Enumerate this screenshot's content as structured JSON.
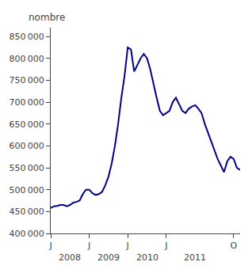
{
  "chart_data": {
    "type": "line",
    "ylabel": "nombre",
    "color": "#00008B",
    "grid": false,
    "categories": [
      "J",
      null,
      null,
      null,
      null,
      null,
      null,
      null,
      null,
      null,
      null,
      null,
      "J",
      null,
      null,
      null,
      null,
      null,
      null,
      null,
      null,
      null,
      null,
      null,
      "J",
      null,
      null,
      null,
      null,
      null,
      null,
      null,
      null,
      null,
      null,
      null,
      "J",
      null,
      null,
      null,
      null,
      null,
      null,
      null,
      null,
      null,
      null,
      null,
      null,
      null,
      null,
      null,
      null,
      null,
      null,
      null,
      null,
      "O",
      null,
      null
    ],
    "values": [
      458000,
      462000,
      463000,
      465000,
      465000,
      462000,
      465000,
      470000,
      472000,
      475000,
      490000,
      500000,
      500000,
      492000,
      488000,
      490000,
      495000,
      510000,
      530000,
      560000,
      600000,
      650000,
      710000,
      760000,
      825000,
      820000,
      770000,
      785000,
      800000,
      810000,
      800000,
      775000,
      740000,
      710000,
      680000,
      670000,
      675000,
      680000,
      700000,
      710000,
      695000,
      680000,
      675000,
      685000,
      690000,
      693000,
      685000,
      675000,
      650000,
      630000,
      610000,
      590000,
      570000,
      555000,
      540000,
      565000,
      575000,
      570000,
      550000,
      545000
    ],
    "ylim": [
      400000,
      870000
    ],
    "yticks": [
      {
        "value": 400000,
        "label": "400 000"
      },
      {
        "value": 450000,
        "label": "450 000"
      },
      {
        "value": 500000,
        "label": "500 000"
      },
      {
        "value": 550000,
        "label": "550 000"
      },
      {
        "value": 600000,
        "label": "600 000"
      },
      {
        "value": 650000,
        "label": "650 000"
      },
      {
        "value": 700000,
        "label": "700 000"
      },
      {
        "value": 750000,
        "label": "750 000"
      },
      {
        "value": 800000,
        "label": "800 000"
      },
      {
        "value": 850000,
        "label": "850 000"
      }
    ],
    "annotations": [
      {
        "text": "2008",
        "x": 6
      },
      {
        "text": "2009",
        "x": 18
      },
      {
        "text": "2010",
        "x": 30
      },
      {
        "text": "2011",
        "x": 45
      }
    ]
  }
}
